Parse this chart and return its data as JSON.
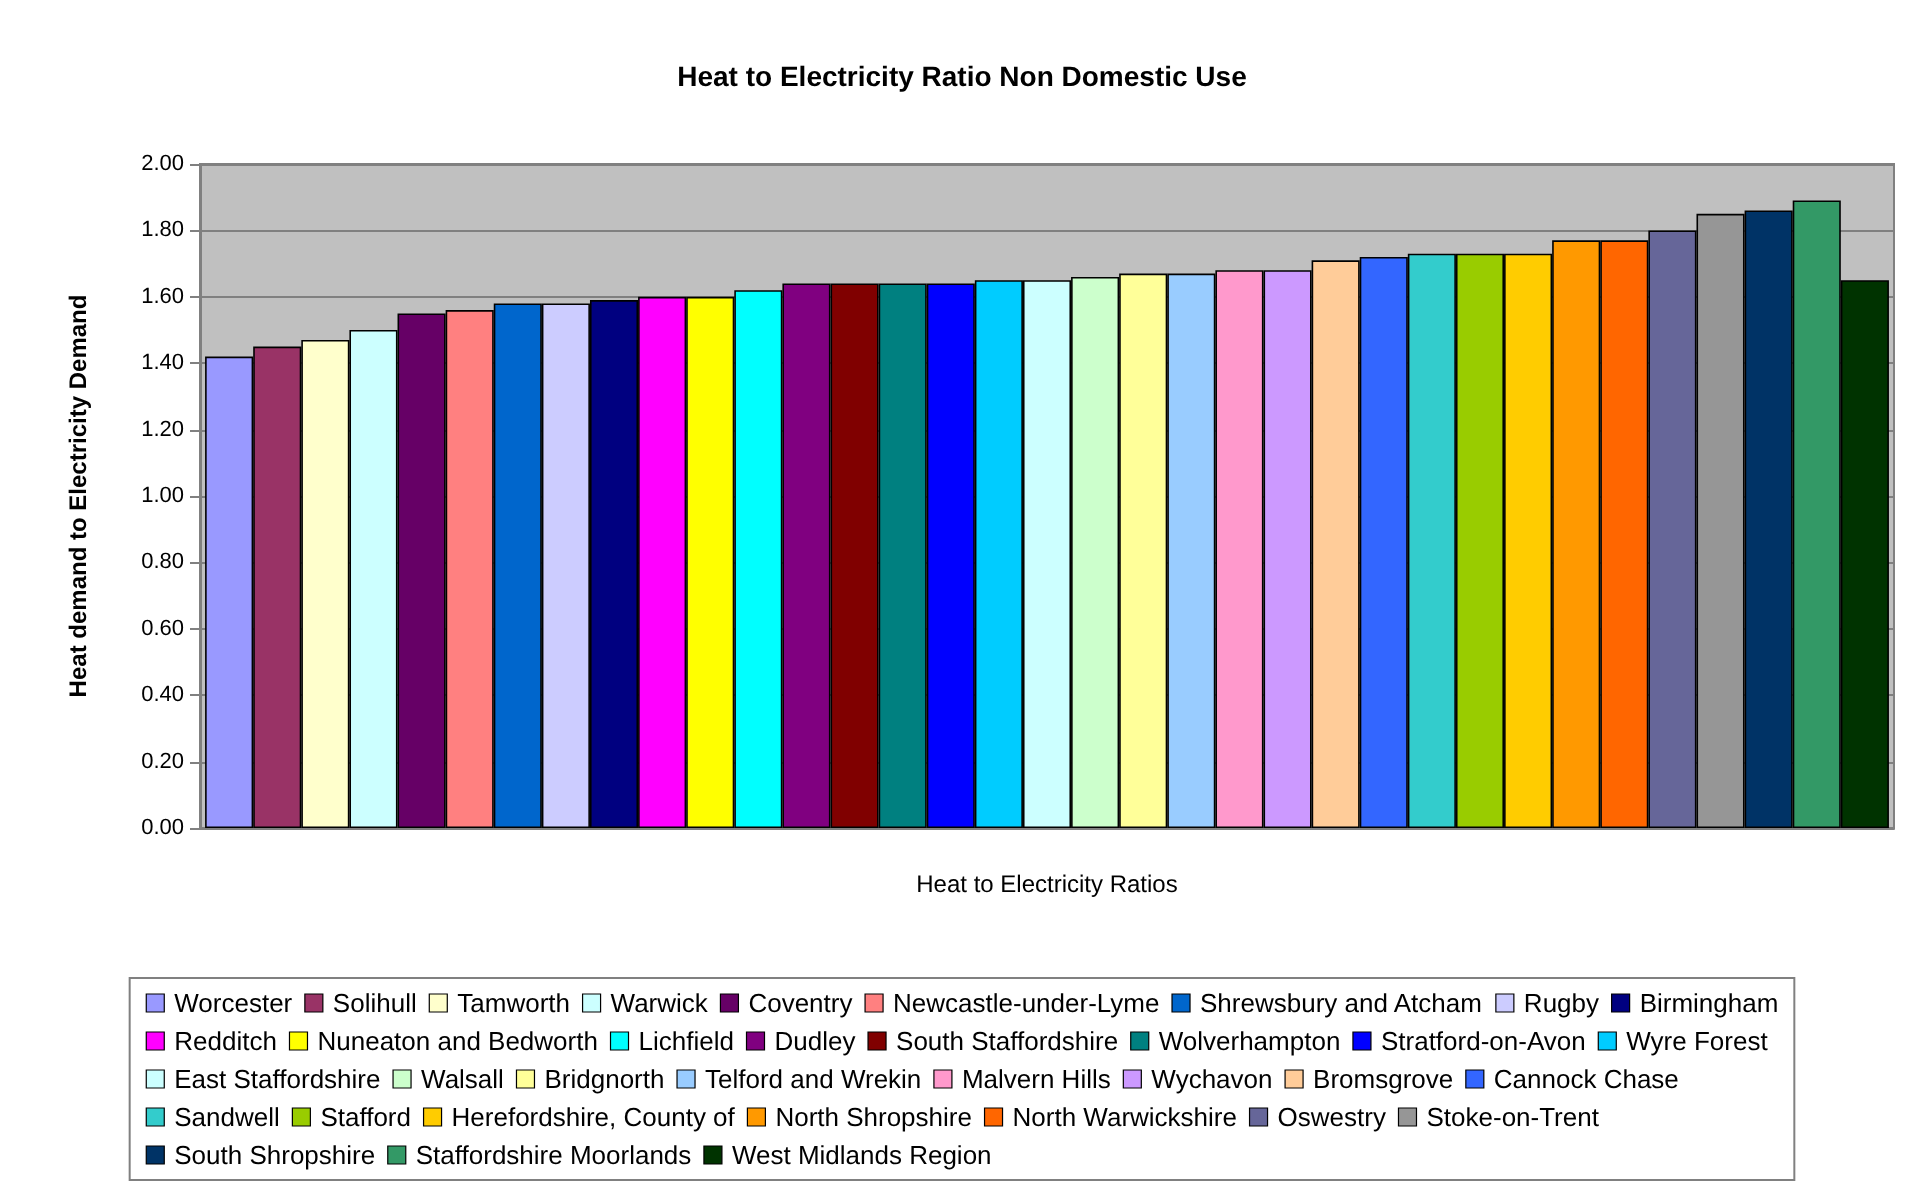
{
  "chart_data": {
    "type": "bar",
    "title": "Heat to Electricity Ratio Non Domestic Use",
    "xlabel": "Heat to Electricity Ratios",
    "ylabel": "Heat demand to Electricity Demand",
    "categories": [
      null
    ],
    "series": [
      {
        "name": "Worcester",
        "color": "#9999ff",
        "values": [
          1.42
        ]
      },
      {
        "name": "Solihull",
        "color": "#993366",
        "values": [
          1.45
        ]
      },
      {
        "name": "Tamworth",
        "color": "#ffffcc",
        "values": [
          1.47
        ]
      },
      {
        "name": "Warwick",
        "color": "#ccffff",
        "values": [
          1.5
        ]
      },
      {
        "name": "Coventry",
        "color": "#660066",
        "values": [
          1.55
        ]
      },
      {
        "name": "Newcastle-under-Lyme",
        "color": "#ff8080",
        "values": [
          1.56
        ]
      },
      {
        "name": "Shrewsbury and Atcham",
        "color": "#0066cc",
        "values": [
          1.58
        ]
      },
      {
        "name": "Rugby",
        "color": "#ccccff",
        "values": [
          1.58
        ]
      },
      {
        "name": "Birmingham",
        "color": "#000080",
        "values": [
          1.59
        ]
      },
      {
        "name": "Redditch",
        "color": "#ff00ff",
        "values": [
          1.6
        ]
      },
      {
        "name": "Nuneaton and Bedworth",
        "color": "#ffff00",
        "values": [
          1.6
        ]
      },
      {
        "name": "Lichfield",
        "color": "#00ffff",
        "values": [
          1.62
        ]
      },
      {
        "name": "Dudley",
        "color": "#800080",
        "values": [
          1.64
        ]
      },
      {
        "name": "South Staffordshire",
        "color": "#800000",
        "values": [
          1.64
        ]
      },
      {
        "name": "Wolverhampton",
        "color": "#008080",
        "values": [
          1.64
        ]
      },
      {
        "name": "Stratford-on-Avon",
        "color": "#0000ff",
        "values": [
          1.64
        ]
      },
      {
        "name": "Wyre Forest",
        "color": "#00ccff",
        "values": [
          1.65
        ]
      },
      {
        "name": "East Staffordshire",
        "color": "#ccffff",
        "values": [
          1.65
        ]
      },
      {
        "name": "Walsall",
        "color": "#ccffcc",
        "values": [
          1.66
        ]
      },
      {
        "name": "Bridgnorth",
        "color": "#ffff99",
        "values": [
          1.67
        ]
      },
      {
        "name": "Telford and Wrekin",
        "color": "#99ccff",
        "values": [
          1.67
        ]
      },
      {
        "name": "Malvern Hills",
        "color": "#ff99cc",
        "values": [
          1.68
        ]
      },
      {
        "name": "Wychavon",
        "color": "#cc99ff",
        "values": [
          1.68
        ]
      },
      {
        "name": "Bromsgrove",
        "color": "#ffcc99",
        "values": [
          1.71
        ]
      },
      {
        "name": "Cannock Chase",
        "color": "#3366ff",
        "values": [
          1.72
        ]
      },
      {
        "name": "Sandwell",
        "color": "#33cccc",
        "values": [
          1.73
        ]
      },
      {
        "name": "Stafford",
        "color": "#99cc00",
        "values": [
          1.73
        ]
      },
      {
        "name": "Herefordshire, County of",
        "color": "#ffcc00",
        "values": [
          1.73
        ]
      },
      {
        "name": "North Shropshire",
        "color": "#ff9900",
        "values": [
          1.77
        ]
      },
      {
        "name": "North Warwickshire",
        "color": "#ff6600",
        "values": [
          1.77
        ]
      },
      {
        "name": "Oswestry",
        "color": "#666699",
        "values": [
          1.8
        ]
      },
      {
        "name": "Stoke-on-Trent",
        "color": "#969696",
        "values": [
          1.85
        ]
      },
      {
        "name": "South Shropshire",
        "color": "#003366",
        "values": [
          1.86
        ]
      },
      {
        "name": "Staffordshire Moorlands",
        "color": "#339966",
        "values": [
          1.89
        ]
      },
      {
        "name": "West Midlands Region",
        "color": "#003300",
        "values": [
          1.65
        ]
      }
    ],
    "ylim": [
      0,
      2
    ],
    "yticks": [
      {
        "value": 0,
        "label": "0.00"
      },
      {
        "value": 0.2,
        "label": "0.20"
      },
      {
        "value": 0.4,
        "label": "0.40"
      },
      {
        "value": 0.6,
        "label": "0.60"
      },
      {
        "value": 0.8,
        "label": "0.80"
      },
      {
        "value": 1,
        "label": "1.00"
      },
      {
        "value": 1.2,
        "label": "1.20"
      },
      {
        "value": 1.4,
        "label": "1.40"
      },
      {
        "value": 1.6,
        "label": "1.60"
      },
      {
        "value": 1.8,
        "label": "1.80"
      },
      {
        "value": 2,
        "label": "2.00"
      }
    ],
    "grid": "y",
    "legend": "bottom"
  }
}
